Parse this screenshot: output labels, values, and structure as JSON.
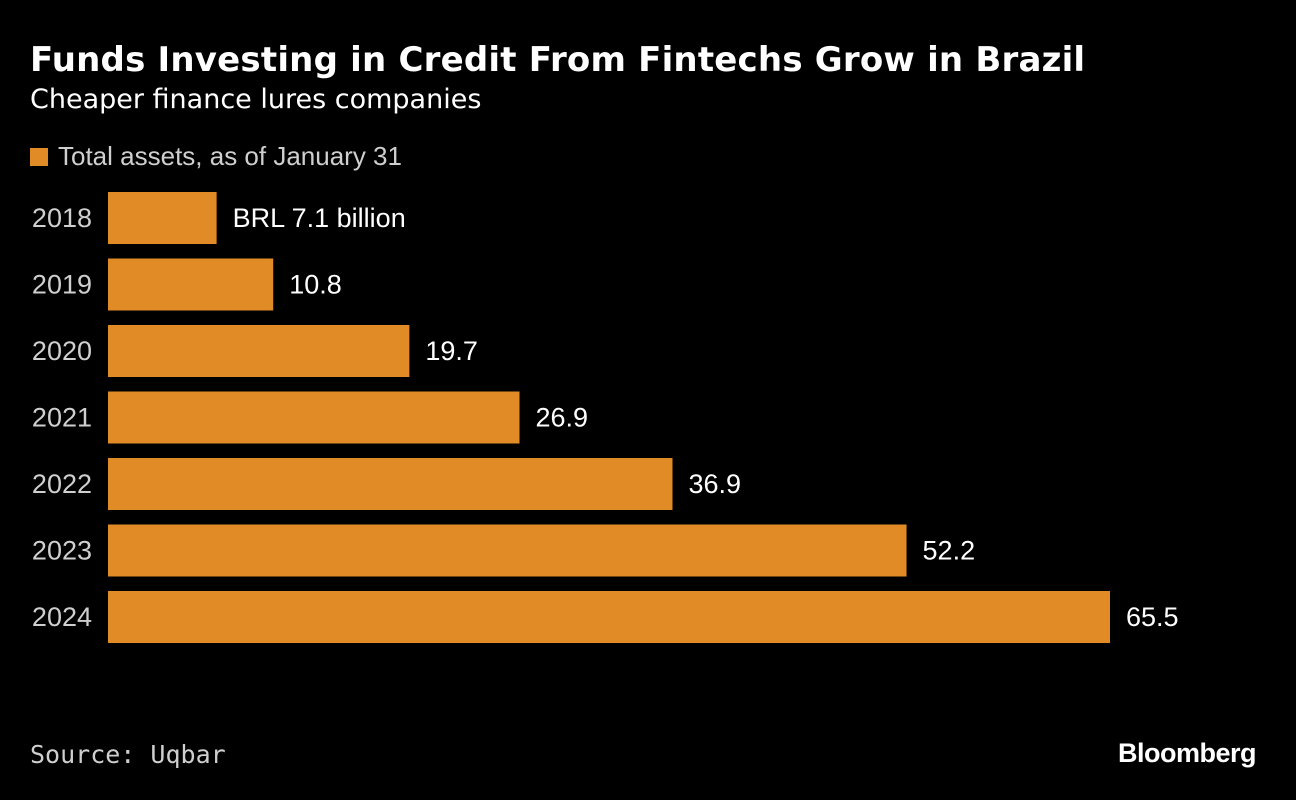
{
  "colors": {
    "background": "#000000",
    "bar": "#e08b25",
    "text": "#ffffff",
    "muted": "#cfcfcf"
  },
  "header": {
    "title": "Funds Investing in Credit From Fintechs Grow in Brazil",
    "subtitle": "Cheaper finance lures companies"
  },
  "footer": {
    "source": "Source: Uqbar",
    "logo": "Bloomberg"
  },
  "chart_data": {
    "type": "bar",
    "orientation": "horizontal",
    "title": "Funds Investing in Credit From Fintechs Grow in Brazil",
    "subtitle": "Cheaper finance lures companies",
    "legend": [
      "Total assets, as of January 31"
    ],
    "categories": [
      "2018",
      "2019",
      "2020",
      "2021",
      "2022",
      "2023",
      "2024"
    ],
    "values": [
      7.1,
      10.8,
      19.7,
      26.9,
      36.9,
      52.2,
      65.5
    ],
    "labels": [
      "BRL 7.1 billion",
      "10.8",
      "19.7",
      "26.9",
      "36.9",
      "52.2",
      "65.5"
    ],
    "unit": "BRL billion",
    "xlim": [
      0,
      65.5
    ],
    "grid": false
  }
}
